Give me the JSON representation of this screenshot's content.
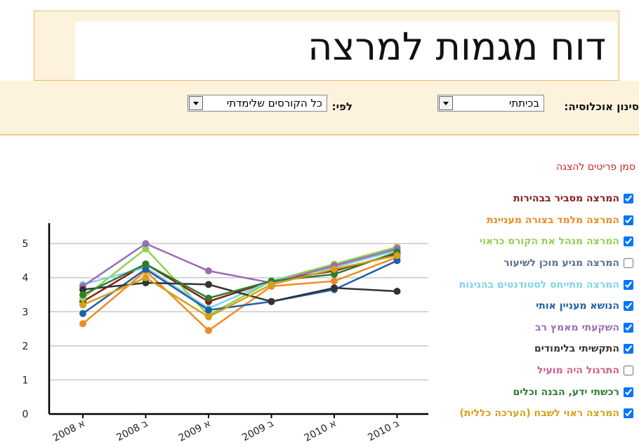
{
  "header": {
    "title": "דוח מגמות למרצה"
  },
  "filters": {
    "population_label": "סינון אוכלוסיה:",
    "population_value": "בכיתתי",
    "by_label": "לפי:",
    "by_value": "כל הקורסים שלימדתי"
  },
  "legend_title": "סמן פריטים להצגה",
  "chart_data": {
    "type": "line",
    "categories": [
      "א 2008",
      "ב 2008",
      "א 2009",
      "ב 2009",
      "א 2010",
      "ב 2010"
    ],
    "ylim": [
      0,
      5.6
    ],
    "yticks": [
      0,
      1,
      2,
      3,
      4,
      5
    ],
    "grid": true,
    "series": [
      {
        "name": "המרצה מסביר בבהירות",
        "color": "#8b1a1a",
        "checked": true,
        "values": [
          3.3,
          4.4,
          3.3,
          3.9,
          4.2,
          4.7
        ]
      },
      {
        "name": "המרצה מלמד בצורה מעניינת",
        "color": "#f08a24",
        "checked": true,
        "values": [
          2.65,
          4.2,
          2.45,
          3.75,
          3.9,
          4.6
        ]
      },
      {
        "name": "המרצה מנהל את הקורס כראוי",
        "color": "#8fd14f",
        "checked": true,
        "values": [
          3.4,
          4.85,
          2.9,
          3.9,
          4.4,
          4.9
        ]
      },
      {
        "name": "המרצה מגיע מוכן לשיעור",
        "color": "#5a6e8c",
        "checked": false
      },
      {
        "name": "המרצה מתייחס לסטודנטים בהגינות",
        "color": "#7fd3e8",
        "checked": true,
        "values": [
          3.8,
          4.3,
          3.1,
          3.9,
          4.3,
          4.8
        ]
      },
      {
        "name": "הנושא מעניין אותי",
        "color": "#1f5fa8",
        "checked": true,
        "values": [
          2.95,
          4.25,
          3.05,
          3.3,
          3.65,
          4.5
        ]
      },
      {
        "name": "השקעתי מאמץ רב",
        "color": "#9b6bb5",
        "checked": true,
        "values": [
          3.75,
          5.0,
          4.2,
          3.85,
          4.35,
          4.85
        ]
      },
      {
        "name": "התקשיתי בלימודים",
        "color": "#333333",
        "checked": true,
        "values": [
          3.65,
          3.85,
          3.8,
          3.3,
          3.7,
          3.6
        ]
      },
      {
        "name": "התרגול היה מועיל",
        "color": "#d05c8a",
        "checked": false
      },
      {
        "name": "רכשתי ידע, הבנה וכלים",
        "color": "#2e7d32",
        "checked": true,
        "values": [
          3.5,
          4.4,
          3.4,
          3.9,
          4.1,
          4.75
        ]
      },
      {
        "name": "המרצה ראוי לשבח (הערכה כללית)",
        "color": "#d4a017",
        "checked": true,
        "values": [
          3.2,
          4.0,
          2.85,
          3.8,
          4.25,
          4.65
        ]
      }
    ]
  }
}
